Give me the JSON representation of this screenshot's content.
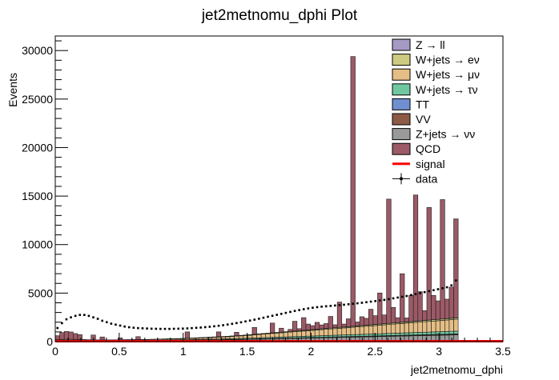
{
  "chart_data": {
    "type": "bar",
    "stacked": true,
    "title": "jet2metnomu_dphi Plot",
    "xlabel": "jet2metnomu_dphi",
    "ylabel": "Events",
    "xlim": [
      0,
      3.5
    ],
    "ylim": [
      0,
      31500
    ],
    "xticks": [
      "0",
      "0.5",
      "1",
      "1.5",
      "2",
      "2.5",
      "3",
      "3.5"
    ],
    "yticks": [
      "0",
      "5000",
      "10000",
      "15000",
      "20000",
      "25000",
      "30000"
    ],
    "bin_width": 0.035,
    "legend_position": "top-right",
    "legend": [
      {
        "label": "Z → ll",
        "color": "#a59ac4",
        "kind": "fill"
      },
      {
        "label": "W+jets → eν",
        "color": "#cdcb81",
        "kind": "fill"
      },
      {
        "label": "W+jets → μν",
        "color": "#e4be86",
        "kind": "fill"
      },
      {
        "label": "W+jets → τν",
        "color": "#70c8a0",
        "kind": "fill"
      },
      {
        "label": "TT",
        "color": "#6f8fd0",
        "kind": "fill"
      },
      {
        "label": "VV",
        "color": "#8c5a45",
        "kind": "fill"
      },
      {
        "label": "Z+jets → νν",
        "color": "#9a9a9a",
        "kind": "fill"
      },
      {
        "label": "QCD",
        "color": "#9b5a66",
        "kind": "fill"
      },
      {
        "label": "signal",
        "color": "#ff0000",
        "kind": "line"
      },
      {
        "label": "data",
        "color": "#000000",
        "kind": "marker"
      }
    ],
    "x": [
      0.0175,
      0.0525,
      0.0875,
      0.1225,
      0.1575,
      0.1925,
      0.2275,
      0.2625,
      0.2975,
      0.3325,
      0.3675,
      0.4025,
      0.4375,
      0.4725,
      0.5075,
      0.5425,
      0.5775,
      0.6125,
      0.6475,
      0.6825,
      0.7175,
      0.7525,
      0.7875,
      0.8225,
      0.8575,
      0.8925,
      0.9275,
      0.9625,
      0.9975,
      1.0325,
      1.0675,
      1.1025,
      1.1375,
      1.1725,
      1.2075,
      1.2425,
      1.2775,
      1.3125,
      1.3475,
      1.3825,
      1.4175,
      1.4525,
      1.4875,
      1.5225,
      1.5575,
      1.5925,
      1.6275,
      1.6625,
      1.6975,
      1.7325,
      1.7675,
      1.8025,
      1.8375,
      1.8725,
      1.9075,
      1.9425,
      1.9775,
      2.0125,
      2.0475,
      2.0825,
      2.1175,
      2.1525,
      2.1875,
      2.2225,
      2.2575,
      2.2925,
      2.3275,
      2.3625,
      2.3975,
      2.4325,
      2.4675,
      2.5025,
      2.5375,
      2.5725,
      2.6075,
      2.6425,
      2.6775,
      2.7125,
      2.7475,
      2.7825,
      2.8175,
      2.8525,
      2.8875,
      2.9225,
      2.9575,
      2.9925,
      3.0275,
      3.0625,
      3.0975,
      3.1325
    ],
    "series": [
      {
        "name": "Z+jets → νν",
        "color": "#9a9a9a",
        "values": [
          80,
          90,
          95,
          95,
          90,
          85,
          80,
          75,
          70,
          70,
          70,
          70,
          70,
          70,
          70,
          75,
          75,
          80,
          80,
          85,
          85,
          90,
          95,
          100,
          105,
          110,
          115,
          120,
          125,
          130,
          135,
          140,
          150,
          155,
          160,
          170,
          175,
          180,
          190,
          200,
          205,
          210,
          220,
          230,
          240,
          250,
          260,
          270,
          280,
          290,
          300,
          310,
          320,
          330,
          340,
          350,
          360,
          370,
          380,
          390,
          400,
          410,
          420,
          430,
          440,
          450,
          460,
          470,
          480,
          490,
          500,
          510,
          520,
          530,
          540,
          550,
          560,
          570,
          580,
          590,
          600,
          610,
          620,
          630,
          640,
          650,
          660,
          670,
          680,
          690
        ]
      },
      {
        "name": "VV",
        "color": "#8c5a45",
        "values": [
          10,
          10,
          12,
          12,
          12,
          12,
          12,
          12,
          12,
          12,
          12,
          12,
          12,
          12,
          12,
          12,
          12,
          12,
          12,
          12,
          12,
          12,
          12,
          14,
          14,
          14,
          14,
          14,
          14,
          16,
          16,
          16,
          16,
          18,
          18,
          18,
          18,
          20,
          20,
          20,
          22,
          22,
          24,
          24,
          26,
          26,
          28,
          28,
          30,
          30,
          32,
          32,
          34,
          34,
          36,
          36,
          38,
          38,
          40,
          40,
          42,
          42,
          44,
          44,
          46,
          46,
          48,
          48,
          50,
          50,
          52,
          52,
          54,
          54,
          56,
          56,
          58,
          58,
          60,
          60,
          62,
          62,
          64,
          64,
          66,
          66,
          68,
          68,
          70,
          70
        ]
      },
      {
        "name": "TT",
        "color": "#6f8fd0",
        "values": [
          5,
          5,
          6,
          6,
          6,
          6,
          6,
          6,
          6,
          6,
          6,
          6,
          6,
          6,
          6,
          6,
          6,
          6,
          6,
          6,
          6,
          6,
          6,
          7,
          7,
          7,
          7,
          7,
          7,
          8,
          8,
          8,
          8,
          9,
          9,
          9,
          9,
          10,
          10,
          10,
          11,
          11,
          12,
          12,
          13,
          13,
          14,
          14,
          15,
          15,
          16,
          16,
          17,
          17,
          18,
          18,
          19,
          19,
          20,
          20,
          21,
          21,
          22,
          22,
          23,
          23,
          24,
          24,
          25,
          25,
          26,
          26,
          27,
          27,
          28,
          28,
          29,
          29,
          30,
          30,
          31,
          31,
          32,
          32,
          33,
          33,
          34,
          34,
          35,
          35
        ]
      },
      {
        "name": "W+jets → τν",
        "color": "#70c8a0",
        "values": [
          30,
          35,
          35,
          35,
          32,
          30,
          28,
          26,
          24,
          24,
          24,
          24,
          24,
          25,
          25,
          26,
          27,
          28,
          29,
          30,
          31,
          32,
          34,
          36,
          38,
          40,
          42,
          44,
          46,
          48,
          50,
          53,
          56,
          59,
          62,
          65,
          68,
          72,
          76,
          80,
          84,
          88,
          92,
          96,
          100,
          104,
          108,
          112,
          116,
          120,
          124,
          128,
          132,
          136,
          140,
          144,
          148,
          152,
          156,
          160,
          164,
          168,
          172,
          176,
          180,
          184,
          188,
          192,
          196,
          200,
          204,
          208,
          212,
          216,
          220,
          224,
          228,
          232,
          236,
          240,
          244,
          248,
          252,
          256,
          260,
          264,
          268,
          272,
          276,
          280
        ]
      },
      {
        "name": "W+jets → μν",
        "color": "#e4be86",
        "values": [
          60,
          70,
          75,
          75,
          70,
          65,
          60,
          55,
          50,
          50,
          50,
          52,
          54,
          56,
          58,
          60,
          62,
          64,
          66,
          68,
          70,
          75,
          80,
          85,
          90,
          95,
          100,
          105,
          110,
          120,
          130,
          140,
          150,
          160,
          170,
          180,
          190,
          200,
          210,
          220,
          240,
          260,
          280,
          300,
          320,
          340,
          360,
          380,
          400,
          420,
          440,
          460,
          480,
          500,
          520,
          540,
          560,
          580,
          600,
          620,
          640,
          660,
          680,
          700,
          720,
          740,
          760,
          780,
          800,
          820,
          840,
          860,
          880,
          900,
          920,
          940,
          960,
          980,
          1000,
          1020,
          1040,
          1060,
          1080,
          1100,
          1120,
          1140,
          1160,
          1180,
          1200,
          1220
        ]
      },
      {
        "name": "W+jets → eν",
        "color": "#cdcb81",
        "values": [
          15,
          16,
          17,
          17,
          16,
          15,
          14,
          13,
          12,
          12,
          12,
          12,
          12,
          12,
          13,
          13,
          14,
          14,
          15,
          15,
          16,
          16,
          17,
          18,
          19,
          20,
          21,
          22,
          23,
          24,
          25,
          26,
          28,
          30,
          32,
          34,
          36,
          38,
          40,
          42,
          44,
          46,
          48,
          50,
          52,
          54,
          56,
          58,
          60,
          62,
          64,
          66,
          68,
          70,
          72,
          74,
          76,
          78,
          80,
          82,
          84,
          86,
          88,
          90,
          92,
          94,
          96,
          98,
          100,
          102,
          104,
          106,
          108,
          110,
          112,
          114,
          116,
          118,
          120,
          122,
          124,
          126,
          128,
          130,
          132,
          134,
          136,
          138,
          140,
          142
        ]
      },
      {
        "name": "Z → ll",
        "color": "#a59ac4",
        "values": [
          3,
          3,
          3,
          3,
          3,
          3,
          3,
          3,
          3,
          3,
          3,
          3,
          3,
          3,
          3,
          3,
          3,
          3,
          3,
          3,
          3,
          3,
          3,
          3,
          3,
          3,
          3,
          3,
          3,
          4,
          4,
          4,
          4,
          4,
          4,
          4,
          4,
          5,
          5,
          5,
          5,
          5,
          5,
          5,
          5,
          6,
          6,
          6,
          6,
          6,
          6,
          6,
          7,
          7,
          7,
          7,
          7,
          7,
          8,
          8,
          8,
          8,
          8,
          8,
          9,
          9,
          9,
          9,
          9,
          9,
          10,
          10,
          10,
          10,
          10,
          10,
          11,
          11,
          11,
          11,
          11,
          11,
          12,
          12,
          12,
          12,
          12,
          12,
          13,
          13
        ]
      },
      {
        "name": "QCD",
        "color": "#9b5a66",
        "values": [
          400,
          700,
          800,
          750,
          600,
          500,
          0,
          0,
          500,
          0,
          300,
          0,
          0,
          0,
          200,
          0,
          0,
          0,
          300,
          0,
          0,
          0,
          0,
          0,
          0,
          0,
          0,
          0,
          0,
          650,
          0,
          0,
          0,
          0,
          0,
          0,
          500,
          0,
          0,
          0,
          350,
          0,
          0,
          0,
          700,
          0,
          0,
          0,
          1000,
          0,
          400,
          0,
          200,
          1000,
          200,
          1300,
          600,
          400,
          700,
          400,
          500,
          1200,
          300,
          2600,
          300,
          800,
          27800,
          400,
          900,
          700,
          1600,
          900,
          3200,
          900,
          12800,
          1600,
          500,
          5000,
          400,
          2700,
          13000,
          3000,
          1000,
          11600,
          2500,
          1900,
          12300,
          2000,
          3200,
          10200
        ]
      }
    ],
    "data_series": {
      "name": "data",
      "values": [
        1400,
        1900,
        2300,
        2500,
        2650,
        2750,
        2750,
        2650,
        2500,
        2350,
        2150,
        2000,
        1850,
        1750,
        1650,
        1550,
        1480,
        1430,
        1390,
        1370,
        1350,
        1330,
        1320,
        1310,
        1310,
        1310,
        1320,
        1330,
        1340,
        1360,
        1390,
        1420,
        1450,
        1490,
        1530,
        1580,
        1630,
        1690,
        1760,
        1830,
        1910,
        1990,
        2080,
        2170,
        2260,
        2360,
        2460,
        2560,
        2660,
        2760,
        2860,
        2960,
        3060,
        3160,
        3250,
        3340,
        3420,
        3490,
        3550,
        3600,
        3640,
        3680,
        3720,
        3760,
        3800,
        3850,
        3900,
        3950,
        4000,
        4060,
        4120,
        4180,
        4240,
        4300,
        4380,
        4460,
        4540,
        4620,
        4700,
        4800,
        4900,
        5000,
        5100,
        5200,
        5300,
        5400,
        5500,
        5600,
        5800,
        6300
      ]
    },
    "signal_series": {
      "name": "signal",
      "values": [
        40,
        40,
        40,
        40,
        40,
        40,
        40,
        40,
        40,
        40,
        40,
        40,
        40,
        40,
        40,
        40,
        40,
        40,
        40,
        40,
        40,
        40,
        40,
        40,
        40,
        40,
        40,
        40,
        40,
        40,
        40,
        40,
        40,
        40,
        40,
        40,
        40,
        40,
        40,
        40,
        40,
        40,
        40,
        40,
        40,
        40,
        40,
        40,
        40,
        40,
        40,
        40,
        40,
        40,
        40,
        40,
        40,
        40,
        40,
        40,
        40,
        40,
        40,
        40,
        40,
        40,
        40,
        40,
        40,
        40,
        40,
        40,
        40,
        40,
        40,
        40,
        40,
        40,
        40,
        40,
        40,
        40,
        40,
        40,
        40,
        40,
        40,
        40,
        40,
        40
      ]
    }
  }
}
